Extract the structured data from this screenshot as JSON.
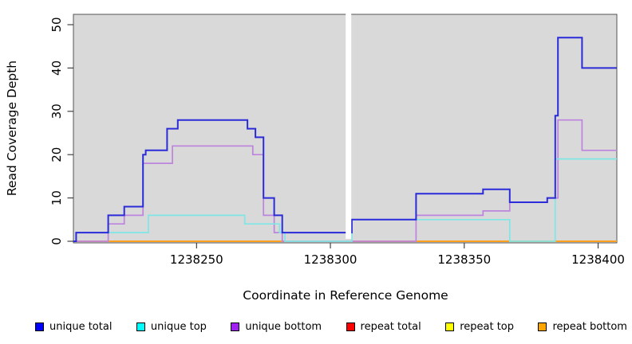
{
  "chart_data": {
    "type": "line",
    "subtype": "step-coverage",
    "xlabel": "Coordinate in Reference Genome",
    "ylabel": "Read Coverage Depth",
    "x_ticks": [
      1238250,
      1238300,
      1238350,
      1238400
    ],
    "y_ticks": [
      0,
      10,
      20,
      30,
      40,
      50
    ],
    "xlim": [
      1238204,
      1238407
    ],
    "ylim": [
      0,
      52
    ],
    "grid": "off",
    "legend_position": "bottom",
    "plot_bg_color": "#d9d9d9",
    "gap_region": {
      "x_start": 1238305.7,
      "x_end": 1238307.8
    },
    "series": [
      {
        "name": "unique-total",
        "label": "unique total",
        "legend_color": "#0000ff",
        "line_color": "#2b2bd9",
        "z": 6,
        "width": 2,
        "steps": [
          [
            1238204,
            0
          ],
          [
            1238205,
            2
          ],
          [
            1238217,
            6
          ],
          [
            1238223,
            8
          ],
          [
            1238230,
            20
          ],
          [
            1238231,
            21
          ],
          [
            1238239,
            26
          ],
          [
            1238243,
            28
          ],
          [
            1238269,
            26
          ],
          [
            1238272,
            24
          ],
          [
            1238275,
            10
          ],
          [
            1238279,
            6
          ],
          [
            1238282,
            2
          ],
          [
            1238308,
            5
          ],
          [
            1238332,
            11
          ],
          [
            1238357,
            12
          ],
          [
            1238367,
            9
          ],
          [
            1238381,
            10
          ],
          [
            1238384,
            29
          ],
          [
            1238385,
            47
          ],
          [
            1238394,
            40
          ]
        ]
      },
      {
        "name": "unique-top",
        "label": "unique top",
        "legend_color": "#00ffff",
        "line_color": "#7fe6e6",
        "z": 5,
        "width": 1.7,
        "steps": [
          [
            1238204,
            0
          ],
          [
            1238205,
            2
          ],
          [
            1238232,
            6
          ],
          [
            1238268,
            4
          ],
          [
            1238281,
            2
          ],
          [
            1238283,
            0
          ],
          [
            1238308,
            5
          ],
          [
            1238367,
            0
          ],
          [
            1238384,
            19
          ]
        ]
      },
      {
        "name": "unique-bottom",
        "label": "unique bottom",
        "legend_color": "#a020f0",
        "line_color": "#bd84dd",
        "z": 4,
        "width": 1.7,
        "steps": [
          [
            1238204,
            0
          ],
          [
            1238217,
            4
          ],
          [
            1238223,
            6
          ],
          [
            1238230,
            18
          ],
          [
            1238241,
            22
          ],
          [
            1238271,
            20
          ],
          [
            1238275,
            6
          ],
          [
            1238279,
            2
          ],
          [
            1238282,
            0
          ],
          [
            1238332,
            6
          ],
          [
            1238357,
            7
          ],
          [
            1238367,
            9
          ],
          [
            1238381,
            10
          ],
          [
            1238385,
            28
          ],
          [
            1238394,
            21
          ]
        ]
      },
      {
        "name": "repeat-total",
        "label": "repeat total",
        "legend_color": "#ff0000",
        "line_color": "#d95858",
        "z": 1,
        "width": 1.6,
        "steps": [
          [
            1238204,
            0
          ]
        ]
      },
      {
        "name": "repeat-top",
        "label": "repeat top",
        "legend_color": "#ffff00",
        "line_color": "#f2ef5a",
        "z": 2,
        "width": 1.6,
        "steps": [
          [
            1238204,
            0
          ]
        ]
      },
      {
        "name": "repeat-bottom",
        "label": "repeat bottom",
        "legend_color": "#ffa500",
        "line_color": "#ff9f1e",
        "z": 3,
        "width": 2,
        "steps": [
          [
            1238204,
            0
          ]
        ]
      }
    ]
  }
}
